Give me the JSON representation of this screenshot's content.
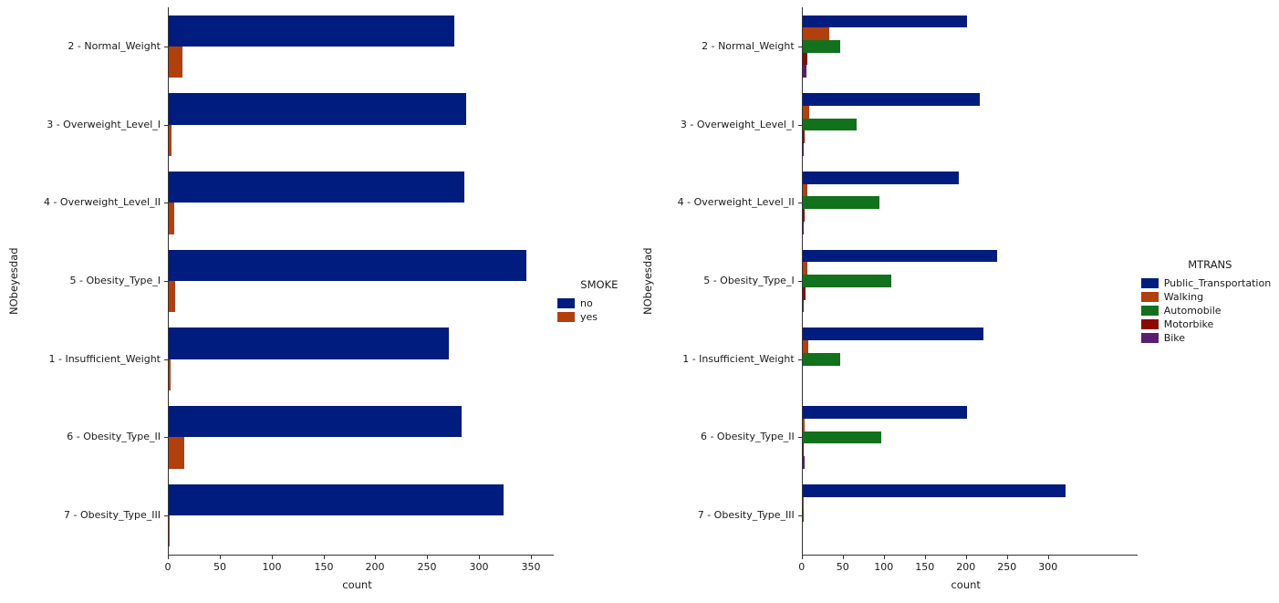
{
  "figure": {
    "background": "#ffffff",
    "axis_color": "#333333",
    "text_color": "#1a1a1a"
  },
  "chart_data": [
    {
      "type": "bar",
      "orientation": "horizontal",
      "title": "",
      "ylabel": "NObeyesdad",
      "xlabel": "count",
      "legend_title": "SMOKE",
      "legend_position": "right-center",
      "grid": false,
      "xlim": [
        0,
        365
      ],
      "xticks": [
        0,
        50,
        100,
        150,
        200,
        250,
        300,
        350
      ],
      "categories": [
        "2 - Normal_Weight",
        "3 - Overweight_Level_I",
        "4 - Overweight_Level_II",
        "5 - Obesity_Type_I",
        "1 - Insufficient_Weight",
        "6 - Obesity_Type_II",
        "7 - Obesity_Type_III"
      ],
      "series": [
        {
          "name": "no",
          "color": "#001c7f",
          "values": [
            275,
            287,
            285,
            345,
            270,
            282,
            323
          ]
        },
        {
          "name": "yes",
          "color": "#b1400d",
          "values": [
            13,
            3,
            5,
            6,
            2,
            15,
            1
          ]
        }
      ]
    },
    {
      "type": "bar",
      "orientation": "horizontal",
      "title": "",
      "ylabel": "NObeyesdad",
      "xlabel": "count",
      "legend_title": "MTRANS",
      "legend_position": "right-center",
      "grid": false,
      "xlim": [
        0,
        400
      ],
      "xticks": [
        0,
        50,
        100,
        150,
        200,
        250,
        300
      ],
      "categories": [
        "2 - Normal_Weight",
        "3 - Overweight_Level_I",
        "4 - Overweight_Level_II",
        "5 - Obesity_Type_I",
        "1 - Insufficient_Weight",
        "6 - Obesity_Type_II",
        "7 - Obesity_Type_III"
      ],
      "series": [
        {
          "name": "Public_Transportation",
          "color": "#001c7f",
          "values": [
            200,
            215,
            190,
            237,
            220,
            200,
            320
          ]
        },
        {
          "name": "Walking",
          "color": "#b1400d",
          "values": [
            32,
            8,
            6,
            5,
            7,
            2,
            1
          ]
        },
        {
          "name": "Automobile",
          "color": "#12711c",
          "values": [
            45,
            65,
            93,
            108,
            45,
            95,
            1
          ]
        },
        {
          "name": "Motorbike",
          "color": "#8c0800",
          "values": [
            5,
            2,
            2,
            3,
            0,
            1,
            0
          ]
        },
        {
          "name": "Bike",
          "color": "#591e71",
          "values": [
            4,
            1,
            1,
            1,
            0,
            2,
            0
          ]
        }
      ]
    }
  ]
}
